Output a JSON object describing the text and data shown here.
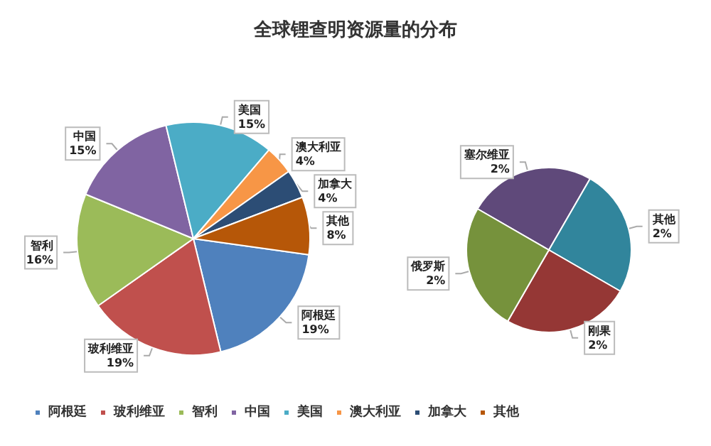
{
  "chart_data": [
    {
      "type": "pie",
      "title": "全球锂查明资源量的分布",
      "categories": [
        "阿根廷",
        "玻利维亚",
        "智利",
        "中国",
        "美国",
        "澳大利亚",
        "加拿大",
        "其他"
      ],
      "values": [
        19,
        19,
        16,
        15,
        15,
        4,
        4,
        8
      ],
      "value_labels": [
        "19%",
        "19%",
        "16%",
        "15%",
        "15%",
        "4%",
        "4%",
        "8%"
      ],
      "colors": [
        "#4f81bd",
        "#c0504d",
        "#9bbb59",
        "#8064a2",
        "#4bacc6",
        "#f79646",
        "#2c4d75",
        "#b65708"
      ],
      "legend": "bottom"
    },
    {
      "type": "pie",
      "categories": [
        "塞尔维亚",
        "其他",
        "刚果",
        "俄罗斯"
      ],
      "values": [
        2,
        2,
        2,
        2
      ],
      "value_labels": [
        "2%",
        "2%",
        "2%",
        "2%"
      ],
      "colors": [
        "#5f497a",
        "#31859c",
        "#953735",
        "#76923c"
      ]
    }
  ]
}
